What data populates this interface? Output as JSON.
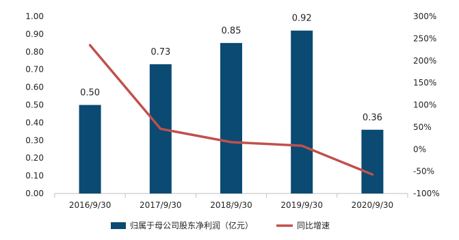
{
  "chart_data": {
    "type": "bar",
    "categories": [
      "2016/9/30",
      "2017/9/30",
      "2018/9/30",
      "2019/9/30",
      "2020/9/30"
    ],
    "series": [
      {
        "name": "归属于母公司股东净利润（亿元）",
        "type": "bar",
        "axis": "left",
        "color": "#0B4A72",
        "values": [
          0.5,
          0.73,
          0.85,
          0.92,
          0.36
        ],
        "data_labels": [
          "0.50",
          "0.73",
          "0.85",
          "0.92",
          "0.36"
        ]
      },
      {
        "name": "同比增速",
        "type": "line",
        "axis": "right",
        "unit": "%",
        "color": "#C0504D",
        "values": [
          235,
          46,
          16,
          8,
          -57
        ]
      }
    ],
    "y_left": {
      "ylim": [
        0,
        1.0
      ],
      "ticks": [
        "0.00",
        "0.10",
        "0.20",
        "0.30",
        "0.40",
        "0.50",
        "0.60",
        "0.70",
        "0.80",
        "0.90",
        "1.00"
      ]
    },
    "y_right": {
      "ylim": [
        -100,
        300
      ],
      "ticks": [
        "-100%",
        "-50%",
        "0%",
        "50%",
        "100%",
        "150%",
        "200%",
        "250%",
        "300%"
      ]
    },
    "grid": false,
    "legend_position": "bottom"
  }
}
